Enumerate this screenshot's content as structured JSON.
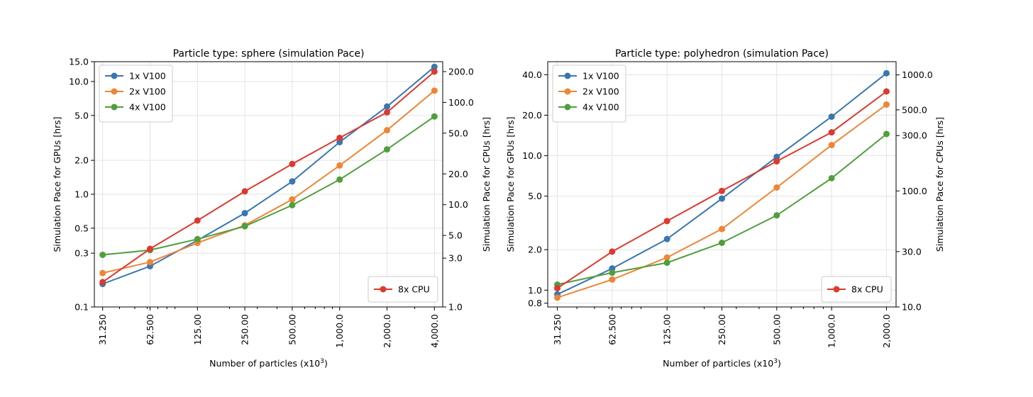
{
  "chart_data": [
    {
      "type": "line",
      "title": "Particle type: sphere (simulation Pace)",
      "xlabel": "Number of particles (x10",
      "xlabel_sup": "3",
      "xlabel_end": ")",
      "ylabel_left": "Simulation Pace for GPUs [hrs]",
      "ylabel_right": "Simulation Pace for CPUs [hrs]",
      "x": [
        31.25,
        62.5,
        125,
        250,
        500,
        1000,
        2000,
        4000
      ],
      "x_tick_labels": [
        "31.250",
        "62.500",
        "125.00",
        "250.00",
        "500.00",
        "1,000.0",
        "2,000.0",
        "4,000.0"
      ],
      "xscale": "log",
      "yscale_left": "log",
      "ylim_left": [
        0.1,
        15
      ],
      "left_ticks": [
        0.1,
        0.3,
        0.5,
        1.0,
        2.0,
        5.0,
        10.0,
        15.0
      ],
      "left_tick_labels": [
        "0.1",
        "0.3",
        "0.5",
        "1.0",
        "2.0",
        "5.0",
        "10.0",
        "15.0"
      ],
      "yscale_right": "log",
      "ylim_right": [
        1,
        250
      ],
      "right_ticks": [
        1,
        3,
        5,
        10,
        20,
        50,
        100,
        200
      ],
      "right_tick_labels": [
        "1.0",
        "3.0",
        "5.0",
        "10.0",
        "20.0",
        "50.0",
        "100.0",
        "200.0"
      ],
      "grid": true,
      "legend_left": "upper-left",
      "legend_right": "lower-right",
      "series": [
        {
          "name": "1x V100",
          "axis": "left",
          "color": "#3a76af",
          "values": [
            0.16,
            0.23,
            0.39,
            0.68,
            1.3,
            2.9,
            6.0,
            13.5
          ]
        },
        {
          "name": "2x V100",
          "axis": "left",
          "color": "#ef8535",
          "values": [
            0.2,
            0.25,
            0.37,
            0.53,
            0.9,
            1.8,
            3.7,
            8.3
          ]
        },
        {
          "name": "4x V100",
          "axis": "left",
          "color": "#519e3e",
          "values": [
            0.29,
            0.32,
            0.4,
            0.52,
            0.8,
            1.35,
            2.5,
            4.9
          ]
        },
        {
          "name": "8x CPU",
          "axis": "right",
          "color": "#dc3a30",
          "values": [
            1.75,
            3.7,
            7.0,
            13.5,
            25,
            45,
            80,
            200
          ]
        }
      ]
    },
    {
      "type": "line",
      "title": "Particle type: polyhedron (simulation Pace)",
      "xlabel": "Number of particles (x10",
      "xlabel_sup": "3",
      "xlabel_end": ")",
      "ylabel_left": "Simulation Pace for GPUs [hrs]",
      "ylabel_right": "Simulation Pace for CPUs [hrs]",
      "x": [
        31.25,
        62.5,
        125,
        250,
        500,
        1000,
        2000
      ],
      "x_tick_labels": [
        "31.250",
        "62.500",
        "125.00",
        "250.00",
        "500.00",
        "1,000.0",
        "2,000.0"
      ],
      "xscale": "log",
      "yscale_left": "log",
      "ylim_left": [
        0.75,
        50
      ],
      "left_ticks": [
        0.8,
        1.0,
        2.0,
        5.0,
        10.0,
        20.0,
        40.0
      ],
      "left_tick_labels": [
        "0.8",
        "1.0",
        "2.0",
        "5.0",
        "10.0",
        "20.0",
        "40.0"
      ],
      "yscale_right": "log",
      "ylim_right": [
        10,
        1300
      ],
      "right_ticks": [
        10,
        30,
        100,
        300,
        500,
        1000
      ],
      "right_tick_labels": [
        "10.0",
        "30.0",
        "100.0",
        "300.0",
        "500.0",
        "1000.0"
      ],
      "grid": true,
      "legend_left": "upper-left",
      "legend_right": "lower-right",
      "series": [
        {
          "name": "1x V100",
          "axis": "left",
          "color": "#3a76af",
          "values": [
            0.93,
            1.45,
            2.4,
            4.8,
            9.8,
            19.5,
            41
          ]
        },
        {
          "name": "2x V100",
          "axis": "left",
          "color": "#ef8535",
          "values": [
            0.88,
            1.2,
            1.75,
            2.85,
            5.8,
            12.0,
            24.0
          ]
        },
        {
          "name": "4x V100",
          "axis": "left",
          "color": "#519e3e",
          "values": [
            1.1,
            1.35,
            1.6,
            2.25,
            3.6,
            6.8,
            14.5
          ]
        },
        {
          "name": "8x CPU",
          "axis": "right",
          "color": "#dc3a30",
          "values": [
            14.5,
            30,
            55,
            100,
            180,
            320,
            720
          ]
        }
      ]
    }
  ]
}
